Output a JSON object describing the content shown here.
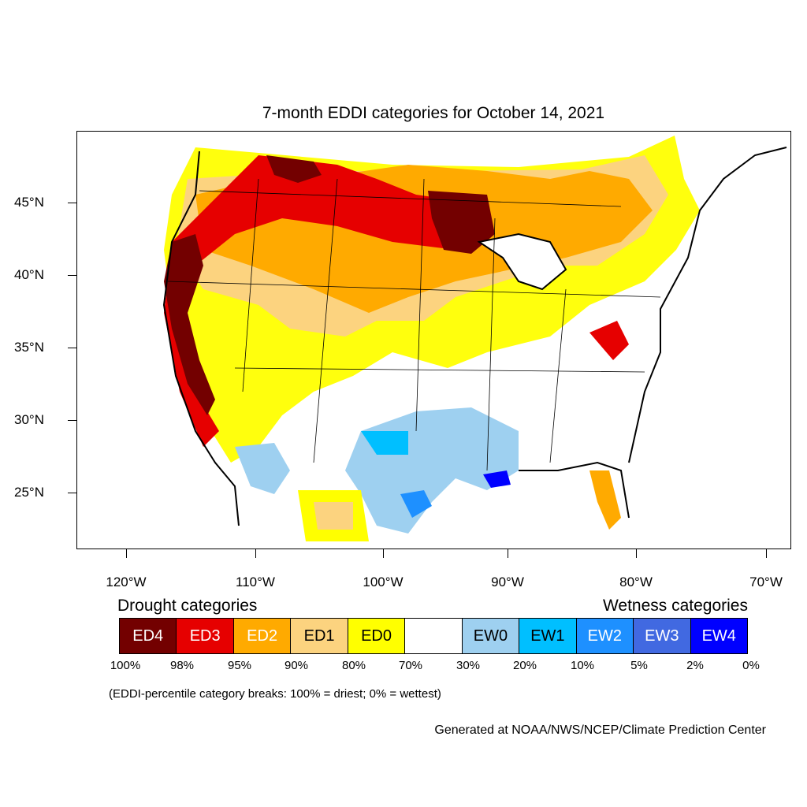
{
  "title": "7-month EDDI categories for October 14, 2021",
  "lat_labels": [
    "45°N",
    "40°N",
    "35°N",
    "30°N",
    "25°N"
  ],
  "lon_labels": [
    "120°W",
    "110°W",
    "100°W",
    "90°W",
    "80°W",
    "70°W"
  ],
  "legend": {
    "drought_title": "Drought categories",
    "wetness_title": "Wetness categories",
    "categories": [
      {
        "label": "ED4",
        "color": "#730000",
        "text_color": "#ffffff"
      },
      {
        "label": "ED3",
        "color": "#e60000",
        "text_color": "#ffffff"
      },
      {
        "label": "ED2",
        "color": "#ffaa00",
        "text_color": "#ffffff"
      },
      {
        "label": "ED1",
        "color": "#fcd37f",
        "text_color": "#000000"
      },
      {
        "label": "ED0",
        "color": "#ffff00",
        "text_color": "#000000"
      },
      {
        "label": "",
        "color": "#ffffff",
        "text_color": "#000000"
      },
      {
        "label": "EW0",
        "color": "#9ed0f0",
        "text_color": "#000000"
      },
      {
        "label": "EW1",
        "color": "#00bfff",
        "text_color": "#000000"
      },
      {
        "label": "EW2",
        "color": "#1e90ff",
        "text_color": "#ffffff"
      },
      {
        "label": "EW3",
        "color": "#4169e1",
        "text_color": "#ffffff"
      },
      {
        "label": "EW4",
        "color": "#0000ff",
        "text_color": "#ffffff"
      }
    ],
    "percentiles": [
      "100%",
      "98%",
      "95%",
      "90%",
      "80%",
      "70%",
      "30%",
      "20%",
      "10%",
      "5%",
      "2%",
      "0%"
    ]
  },
  "note": "(EDDI-percentile category breaks: 100% = driest; 0% = wettest)",
  "credit": "Generated at NOAA/NWS/NCEP/Climate Prediction Center"
}
